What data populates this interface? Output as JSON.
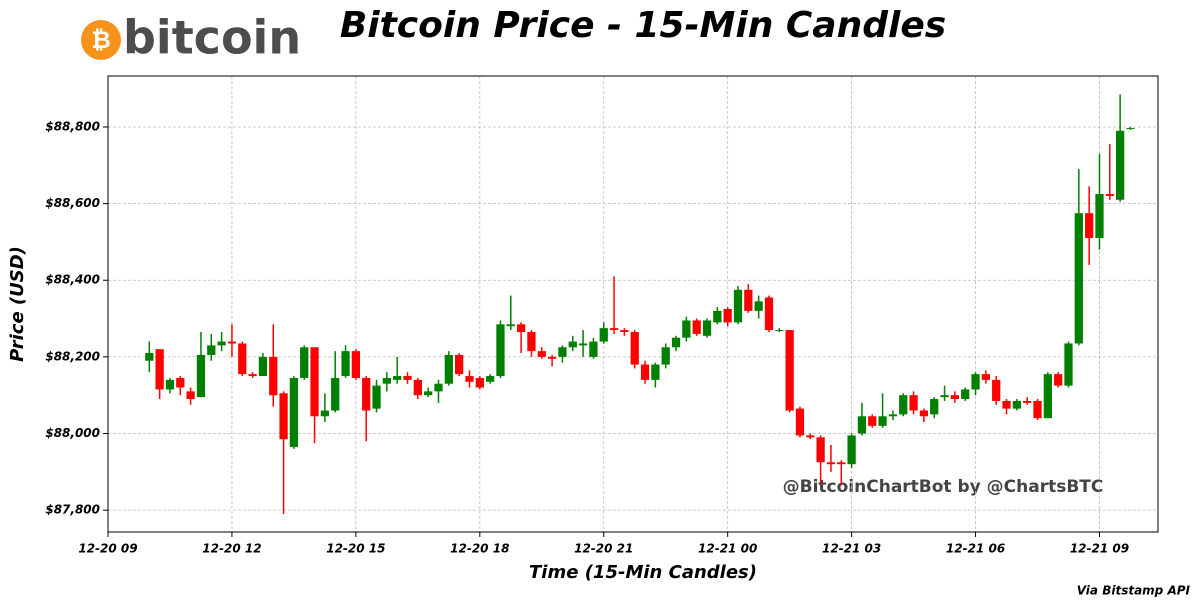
{
  "chart_data": {
    "type": "candlestick",
    "logo_symbol": "₿",
    "logo_text": "bitcoin",
    "title": "Bitcoin Price - 15-Min Candles",
    "xlabel": "Time (15-Min Candles)",
    "ylabel": "Price (USD)",
    "watermark": "@BitcoinChartBot by @ChartsBTC",
    "source": "Via Bitstamp API",
    "up_color": "#008000",
    "down_color": "#ff0000",
    "grid": true,
    "xlim": [
      "12-20 09:00",
      "12-21 10:25"
    ],
    "xticks": [
      {
        "value": "12-20 09:00",
        "label": "12-20 09"
      },
      {
        "value": "12-20 12:00",
        "label": "12-20 12"
      },
      {
        "value": "12-20 15:00",
        "label": "12-20 15"
      },
      {
        "value": "12-20 18:00",
        "label": "12-20 18"
      },
      {
        "value": "12-20 21:00",
        "label": "12-20 21"
      },
      {
        "value": "12-21 00:00",
        "label": "12-21 00"
      },
      {
        "value": "12-21 03:00",
        "label": "12-21 03"
      },
      {
        "value": "12-21 06:00",
        "label": "12-21 06"
      },
      {
        "value": "12-21 09:00",
        "label": "12-21 09"
      }
    ],
    "ylim": [
      87743,
      88933
    ],
    "yticks": [
      {
        "value": 87800,
        "label": "$87,800"
      },
      {
        "value": 88000,
        "label": "$88,000"
      },
      {
        "value": 88200,
        "label": "$88,200"
      },
      {
        "value": 88400,
        "label": "$88,400"
      },
      {
        "value": 88600,
        "label": "$88,600"
      },
      {
        "value": 88800,
        "label": "$88,800"
      }
    ],
    "x": [
      "12-20 10:00",
      "12-20 10:15",
      "12-20 10:30",
      "12-20 10:45",
      "12-20 11:00",
      "12-20 11:15",
      "12-20 11:30",
      "12-20 11:45",
      "12-20 12:00",
      "12-20 12:15",
      "12-20 12:30",
      "12-20 12:45",
      "12-20 13:00",
      "12-20 13:15",
      "12-20 13:30",
      "12-20 13:45",
      "12-20 14:00",
      "12-20 14:15",
      "12-20 14:30",
      "12-20 14:45",
      "12-20 15:00",
      "12-20 15:15",
      "12-20 15:30",
      "12-20 15:45",
      "12-20 16:00",
      "12-20 16:15",
      "12-20 16:30",
      "12-20 16:45",
      "12-20 17:00",
      "12-20 17:15",
      "12-20 17:30",
      "12-20 17:45",
      "12-20 18:00",
      "12-20 18:15",
      "12-20 18:30",
      "12-20 18:45",
      "12-20 19:00",
      "12-20 19:15",
      "12-20 19:30",
      "12-20 19:45",
      "12-20 20:00",
      "12-20 20:15",
      "12-20 20:30",
      "12-20 20:45",
      "12-20 21:00",
      "12-20 21:15",
      "12-20 21:30",
      "12-20 21:45",
      "12-20 22:00",
      "12-20 22:15",
      "12-20 22:30",
      "12-20 22:45",
      "12-20 23:00",
      "12-20 23:15",
      "12-20 23:30",
      "12-20 23:45",
      "12-21 00:00",
      "12-21 00:15",
      "12-21 00:30",
      "12-21 00:45",
      "12-21 01:00",
      "12-21 01:15",
      "12-21 01:30",
      "12-21 01:45",
      "12-21 02:00",
      "12-21 02:15",
      "12-21 02:30",
      "12-21 02:45",
      "12-21 03:00",
      "12-21 03:15",
      "12-21 03:30",
      "12-21 03:45",
      "12-21 04:00",
      "12-21 04:15",
      "12-21 04:30",
      "12-21 04:45",
      "12-21 05:00",
      "12-21 05:15",
      "12-21 05:30",
      "12-21 05:45",
      "12-21 06:00",
      "12-21 06:15",
      "12-21 06:30",
      "12-21 06:45",
      "12-21 07:00",
      "12-21 07:15",
      "12-21 07:30",
      "12-21 07:45",
      "12-21 08:00",
      "12-21 08:15",
      "12-21 08:30",
      "12-21 08:45",
      "12-21 09:00",
      "12-21 09:15",
      "12-21 09:30",
      "12-21 09:45"
    ],
    "open": [
      88190,
      88220,
      88115,
      88145,
      88110,
      88095,
      88205,
      88230,
      88240,
      88235,
      88155,
      88150,
      88200,
      88105,
      87965,
      88145,
      88225,
      88045,
      88060,
      88150,
      88215,
      88145,
      88065,
      88130,
      88140,
      88150,
      88140,
      88100,
      88110,
      88130,
      88205,
      88150,
      88145,
      88135,
      88150,
      88280,
      88285,
      88265,
      88215,
      88200,
      88200,
      88225,
      88230,
      88200,
      88240,
      88275,
      88270,
      88265,
      88180,
      88140,
      88180,
      88225,
      88250,
      88295,
      88255,
      88290,
      88325,
      88290,
      88375,
      88320,
      88355,
      88270,
      88270,
      88065,
      87995,
      87990,
      87925,
      87925,
      87920,
      88000,
      88045,
      88020,
      88045,
      88050,
      88100,
      88060,
      88050,
      88095,
      88100,
      88090,
      88115,
      88155,
      88140,
      88085,
      88065,
      88085,
      88085,
      88040,
      88155,
      88125,
      88235,
      88575,
      88510,
      88625,
      88610,
      88795
    ],
    "high": [
      88240,
      88220,
      88145,
      88150,
      88120,
      88265,
      88260,
      88265,
      88285,
      88240,
      88160,
      88210,
      88285,
      88110,
      88150,
      88230,
      88225,
      88105,
      88215,
      88230,
      88220,
      88150,
      88140,
      88160,
      88200,
      88160,
      88145,
      88120,
      88140,
      88215,
      88210,
      88165,
      88150,
      88155,
      88295,
      88360,
      88290,
      88270,
      88225,
      88205,
      88230,
      88255,
      88270,
      88250,
      88290,
      88410,
      88275,
      88270,
      88190,
      88185,
      88235,
      88255,
      88305,
      88300,
      88300,
      88330,
      88330,
      88385,
      88390,
      88360,
      88360,
      88275,
      88270,
      88070,
      88000,
      87995,
      87970,
      87930,
      88000,
      88080,
      88050,
      88105,
      88060,
      88105,
      88110,
      88065,
      88095,
      88125,
      88110,
      88120,
      88160,
      88165,
      88150,
      88090,
      88090,
      88095,
      88090,
      88160,
      88160,
      88240,
      88690,
      88645,
      88730,
      88755,
      88885,
      88800
    ],
    "low": [
      88160,
      88090,
      88105,
      88100,
      88075,
      88095,
      88190,
      88215,
      88200,
      88150,
      88145,
      88150,
      88070,
      87790,
      87960,
      88140,
      87975,
      88030,
      88055,
      88145,
      88140,
      87980,
      88055,
      88110,
      88130,
      88130,
      88090,
      88095,
      88080,
      88125,
      88150,
      88120,
      88115,
      88130,
      88145,
      88270,
      88210,
      88200,
      88195,
      88175,
      88185,
      88215,
      88200,
      88195,
      88235,
      88260,
      88255,
      88170,
      88130,
      88120,
      88170,
      88215,
      88240,
      88255,
      88250,
      88285,
      88280,
      88285,
      88315,
      88300,
      88265,
      88265,
      88055,
      87990,
      87985,
      87870,
      87900,
      87865,
      87910,
      87995,
      88015,
      88015,
      88035,
      88045,
      88050,
      88030,
      88040,
      88085,
      88080,
      88085,
      88100,
      88130,
      88075,
      88050,
      88060,
      88075,
      88035,
      88040,
      88120,
      88120,
      88230,
      88440,
      88480,
      88610,
      88605,
      88793
    ],
    "close": [
      88210,
      88115,
      88140,
      88120,
      88090,
      88205,
      88230,
      88240,
      88235,
      88155,
      88150,
      88200,
      88100,
      87985,
      88145,
      88225,
      88045,
      88060,
      88145,
      88215,
      88145,
      88060,
      88125,
      88145,
      88150,
      88140,
      88100,
      88110,
      88130,
      88205,
      88155,
      88135,
      88120,
      88150,
      88285,
      88285,
      88265,
      88215,
      88200,
      88195,
      88225,
      88240,
      88235,
      88240,
      88275,
      88270,
      88265,
      88180,
      88140,
      88180,
      88225,
      88250,
      88295,
      88260,
      88295,
      88320,
      88290,
      88375,
      88320,
      88345,
      88270,
      88270,
      88060,
      87995,
      87990,
      87925,
      87920,
      87920,
      87995,
      88045,
      88020,
      88045,
      88050,
      88100,
      88060,
      88045,
      88090,
      88100,
      88090,
      88115,
      88155,
      88140,
      88085,
      88065,
      88085,
      88080,
      88040,
      88155,
      88125,
      88235,
      88575,
      88510,
      88625,
      88620,
      88790,
      88797
    ]
  }
}
